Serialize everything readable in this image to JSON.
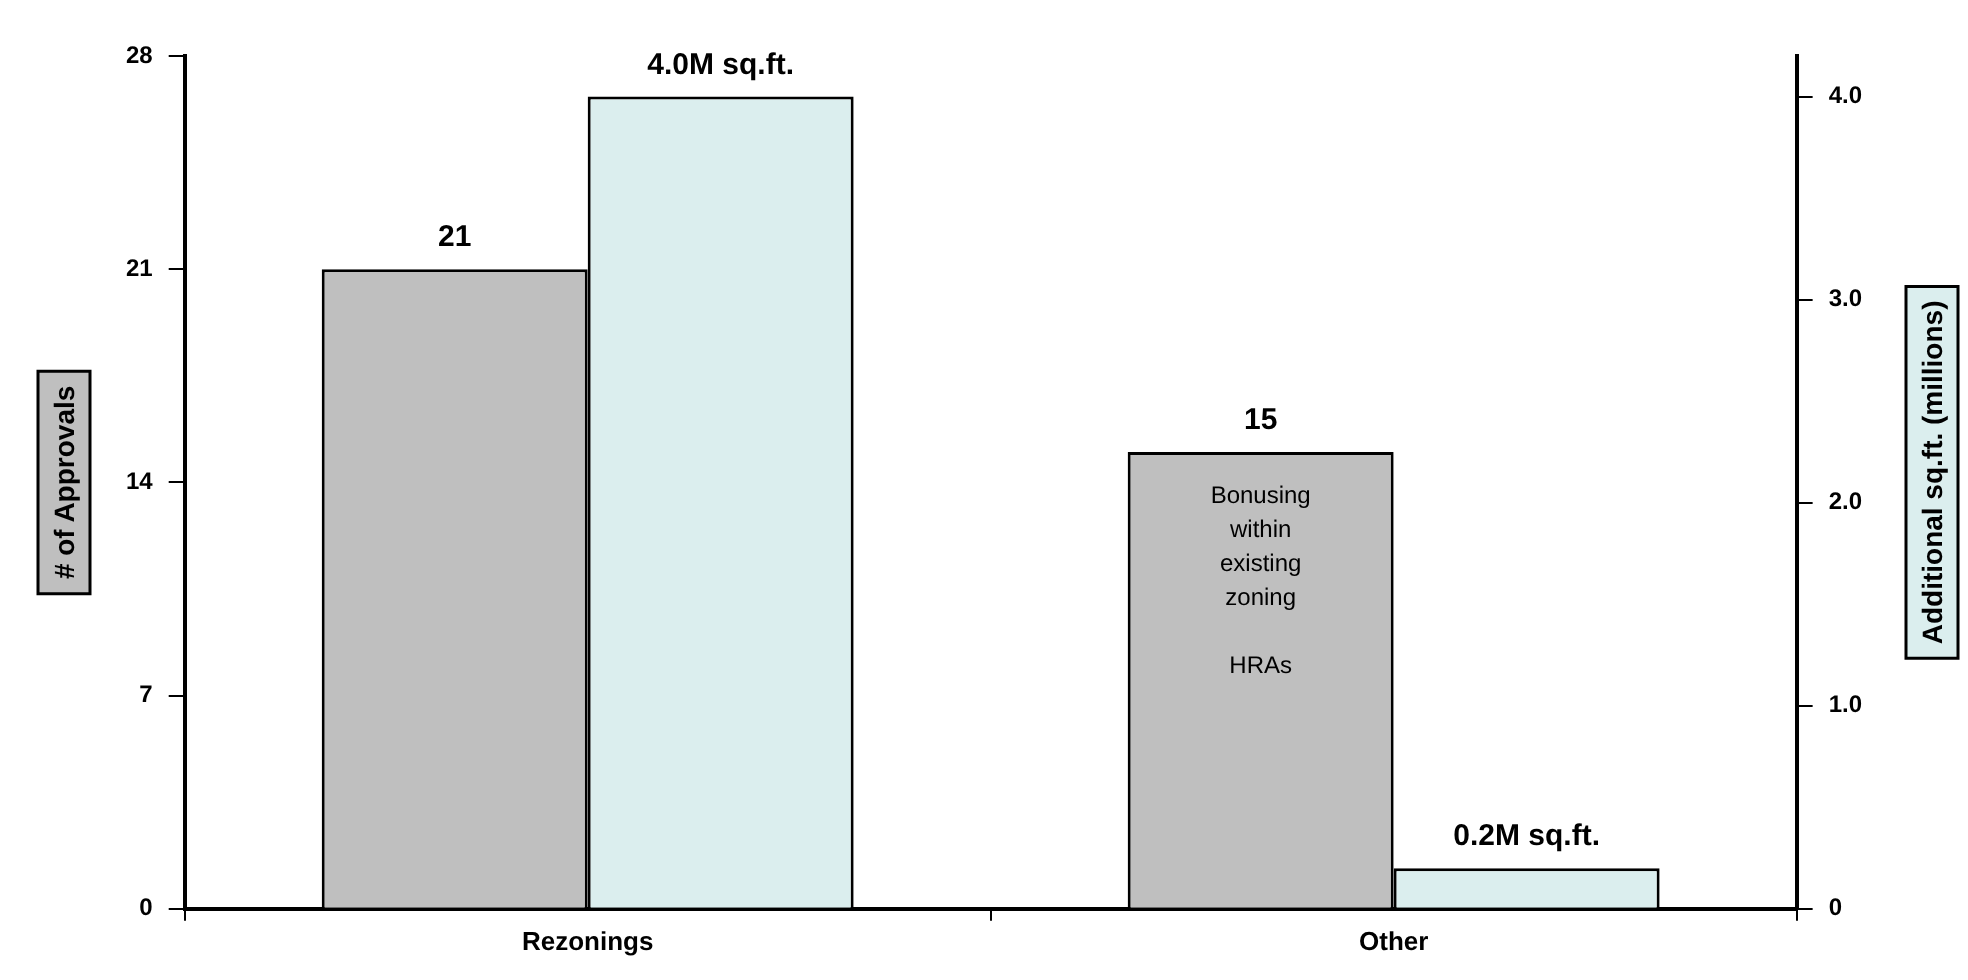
{
  "chart_data": {
    "type": "bar",
    "categories": [
      "Rezonings",
      "Other"
    ],
    "ylabel": "# of Approvals",
    "y2label": "Additional sq.ft. (millions)",
    "series": [
      {
        "color": "#bfbfbf",
        "values": [
          21,
          15
        ],
        "value_labels": [
          "21",
          "15"
        ]
      },
      {
        "color": "#dbeeee",
        "values": [
          4.0,
          0.2
        ],
        "axis": "y2",
        "value_labels": [
          "4.0M sq.ft.",
          "0.2M sq.ft."
        ]
      }
    ],
    "ylim": [
      0,
      28
    ],
    "yticks": [
      0,
      7,
      14,
      21,
      28
    ],
    "y2lim": [
      0,
      4.2
    ],
    "y2ticks": [
      0,
      {
        "value": 1,
        "label": "1.0"
      },
      {
        "value": 2,
        "label": "2.0"
      },
      {
        "value": 3,
        "label": "3.0"
      },
      {
        "value": 4,
        "label": "4.0"
      }
    ],
    "annotations": [
      "Bonusing within existing zoning",
      "HRAs"
    ],
    "grid": false,
    "legend": false
  }
}
